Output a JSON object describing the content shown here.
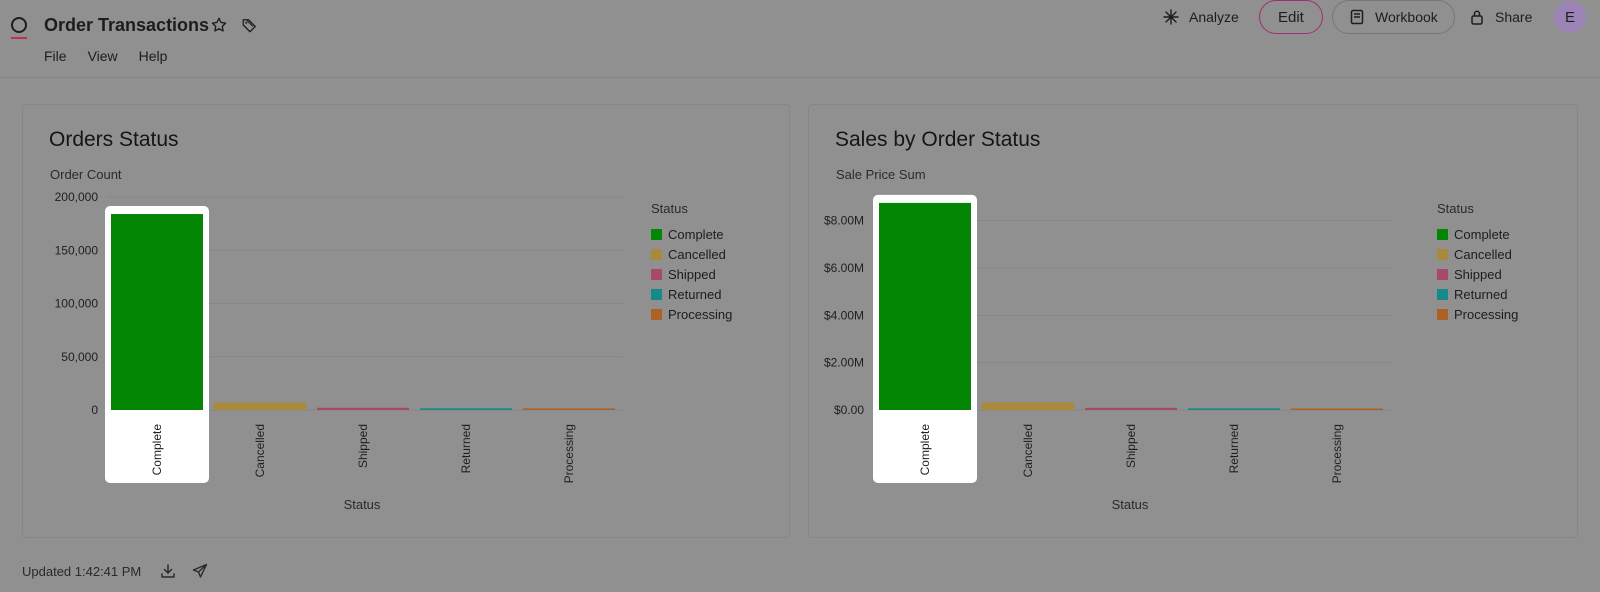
{
  "header": {
    "title": "Order Transactions",
    "menu": [
      "File",
      "View",
      "Help"
    ],
    "actions": {
      "analyze": "Analyze",
      "edit": "Edit",
      "workbook": "Workbook",
      "share": "Share",
      "avatar": "E"
    }
  },
  "colors": {
    "accent": "#a12e71",
    "complete": "#038603",
    "cancelled": "#a98a3c",
    "shipped": "#a8496b",
    "returned": "#168a8a",
    "processing": "#ad6223"
  },
  "charts": [
    {
      "title": "Orders Status",
      "subtitle": "Order Count",
      "xlabel": "Status",
      "legend_title": "Status",
      "chart_data": {
        "type": "bar",
        "categories": [
          "Complete",
          "Cancelled",
          "Shipped",
          "Returned",
          "Processing"
        ],
        "values": [
          184000,
          7000,
          2100,
          1600,
          1500
        ],
        "ylim": [
          0,
          200000
        ],
        "yticks": [
          "0",
          "50,000",
          "100,000",
          "150,000",
          "200,000"
        ],
        "ytick_values": [
          0,
          50000,
          100000,
          150000,
          200000
        ],
        "highlighted": "Complete"
      }
    },
    {
      "title": "Sales by Order Status",
      "subtitle": "Sale Price Sum",
      "xlabel": "Status",
      "legend_title": "Status",
      "chart_data": {
        "type": "bar",
        "categories": [
          "Complete",
          "Cancelled",
          "Shipped",
          "Returned",
          "Processing"
        ],
        "values": [
          8750000,
          320000,
          90000,
          70000,
          60000
        ],
        "ylim": [
          0,
          9000000
        ],
        "yticks": [
          "$0.00",
          "$2.00M",
          "$4.00M",
          "$6.00M",
          "$8.00M"
        ],
        "ytick_values": [
          0,
          2000000,
          4000000,
          6000000,
          8000000
        ],
        "highlighted": "Complete"
      }
    }
  ],
  "footer": {
    "updated": "Updated 1:42:41 PM"
  }
}
